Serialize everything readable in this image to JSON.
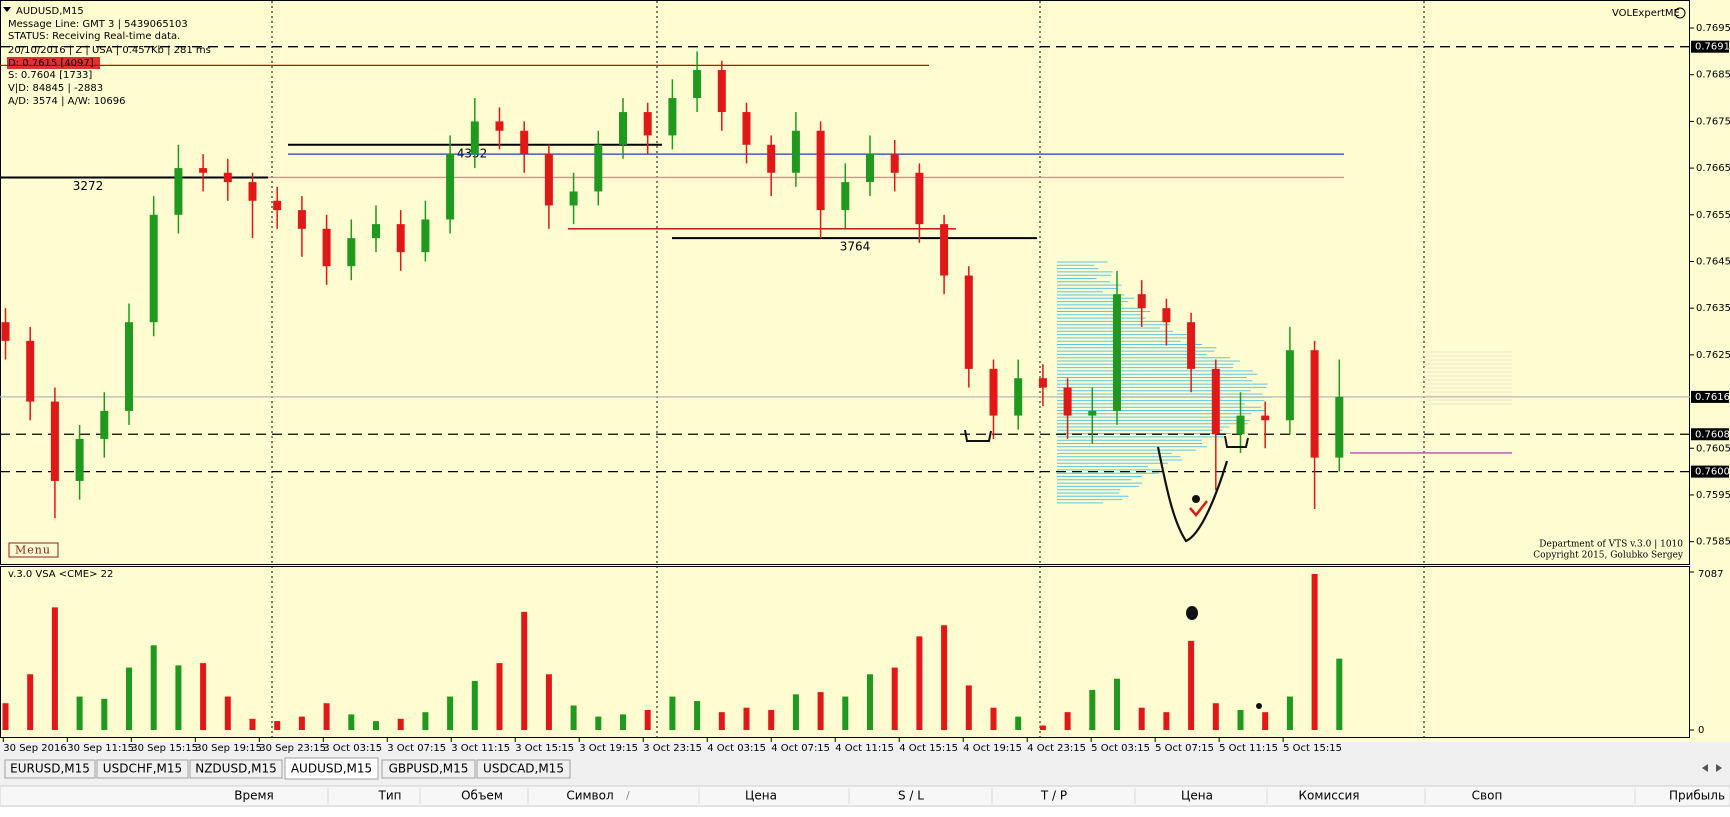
{
  "chart_data": {
    "type": "candlestick",
    "symbol": "AUDUSD,M15",
    "info": [
      "Message Line: GMT 3 | 5439065103",
      "STATUS:  Receiving Real-time data.",
      "20/10/2016 | Z | USA | 0.457Kb | 281 ms",
      "D: 0.7615  [4097]",
      "S: 0.7604  [1733]",
      "V|D: 84845 | -2883",
      "A/D: 3574 | A/W: 10696"
    ],
    "indicator": "VOLExpertME",
    "menu": "Menu",
    "copyright": [
      "Department of VTS  v.3.0 | 1010",
      "Copyright 2015, Golubko Sergey"
    ],
    "ylim": [
      0.758,
      0.7701
    ],
    "yticks": [
      0.7695,
      0.7685,
      0.7675,
      0.7665,
      0.7655,
      0.7645,
      0.7635,
      0.7625,
      0.7605,
      0.7595,
      0.7585
    ],
    "price_marks": [
      0.7691,
      0.7616,
      0.7608,
      {
        "value": 0.76,
        "label": "0.7600"
      }
    ],
    "up_color": "#1f9a1f",
    "down_color": "#e01818",
    "candles": [
      [
        0.7632,
        0.7635,
        0.7624,
        0.7628
      ],
      [
        0.7628,
        0.7631,
        0.7611,
        0.7615
      ],
      [
        0.7615,
        0.7618,
        0.759,
        0.7598
      ],
      [
        0.7598,
        0.761,
        0.7594,
        0.7607
      ],
      [
        0.7607,
        0.7617,
        0.7603,
        0.7613
      ],
      [
        0.7613,
        0.7636,
        0.761,
        0.7632
      ],
      [
        0.7632,
        0.7659,
        0.7629,
        0.7655
      ],
      [
        0.7655,
        0.767,
        0.7651,
        0.7665
      ],
      [
        0.7665,
        0.7668,
        0.766,
        0.7664
      ],
      [
        0.7664,
        0.7667,
        0.7658,
        0.7662
      ],
      [
        0.7662,
        0.7664,
        0.765,
        0.7658
      ],
      [
        0.7658,
        0.7661,
        0.7652,
        0.7656
      ],
      [
        0.7656,
        0.7659,
        0.7646,
        0.7652
      ],
      [
        0.7652,
        0.7655,
        0.764,
        0.7644
      ],
      [
        0.7644,
        0.7654,
        0.7641,
        0.765
      ],
      [
        0.765,
        0.7657,
        0.7647,
        0.7653
      ],
      [
        0.7653,
        0.7656,
        0.7643,
        0.7647
      ],
      [
        0.7647,
        0.7658,
        0.7645,
        0.7654
      ],
      [
        0.7654,
        0.7672,
        0.7651,
        0.7668
      ],
      [
        0.7668,
        0.768,
        0.7665,
        0.7675
      ],
      [
        0.7675,
        0.7678,
        0.7669,
        0.7673
      ],
      [
        0.7673,
        0.7675,
        0.7664,
        0.7668
      ],
      [
        0.7668,
        0.767,
        0.7652,
        0.7657
      ],
      [
        0.7657,
        0.7664,
        0.7653,
        0.766
      ],
      [
        0.766,
        0.7673,
        0.7657,
        0.767
      ],
      [
        0.767,
        0.768,
        0.7667,
        0.7677
      ],
      [
        0.7677,
        0.7679,
        0.7668,
        0.7672
      ],
      [
        0.7672,
        0.7684,
        0.7669,
        0.768
      ],
      [
        0.768,
        0.769,
        0.7677,
        0.7686
      ],
      [
        0.7686,
        0.7688,
        0.7673,
        0.7677
      ],
      [
        0.7677,
        0.7679,
        0.7666,
        0.767
      ],
      [
        0.767,
        0.7672,
        0.7659,
        0.7664
      ],
      [
        0.7664,
        0.7677,
        0.7661,
        0.7673
      ],
      [
        0.7673,
        0.7675,
        0.765,
        0.7656
      ],
      [
        0.7656,
        0.7666,
        0.7652,
        0.7662
      ],
      [
        0.7662,
        0.7672,
        0.7659,
        0.7668
      ],
      [
        0.7668,
        0.7671,
        0.766,
        0.7664
      ],
      [
        0.7664,
        0.7666,
        0.7649,
        0.7653
      ],
      [
        0.7653,
        0.7655,
        0.7638,
        0.7642
      ],
      [
        0.7642,
        0.7644,
        0.7618,
        0.7622
      ],
      [
        0.7622,
        0.7624,
        0.7607,
        0.7612
      ],
      [
        0.7612,
        0.7624,
        0.7609,
        0.762
      ],
      [
        0.762,
        0.7623,
        0.7614,
        0.7618
      ],
      [
        0.7618,
        0.762,
        0.7607,
        0.7612
      ],
      [
        0.7612,
        0.7618,
        0.7606,
        0.7613
      ],
      [
        0.7613,
        0.7643,
        0.761,
        0.7638
      ],
      [
        0.7638,
        0.7641,
        0.7631,
        0.7635
      ],
      [
        0.7635,
        0.7637,
        0.7627,
        0.7632
      ],
      [
        0.7632,
        0.7634,
        0.7617,
        0.7622
      ],
      [
        0.7622,
        0.7624,
        0.7596,
        0.7608
      ],
      [
        0.7608,
        0.7617,
        0.7604,
        0.7612
      ],
      [
        0.7612,
        0.7615,
        0.7605,
        0.7611
      ],
      [
        0.7611,
        0.7631,
        0.7608,
        0.7626
      ],
      [
        0.7626,
        0.7628,
        0.7592,
        0.7603
      ],
      [
        0.7603,
        0.7624,
        0.76,
        0.7616
      ]
    ],
    "levels": [
      {
        "price": 0.7691,
        "line": "dashed",
        "color": "#000000"
      },
      {
        "price": 0.7687,
        "line": "solid",
        "color": "#d00000"
      },
      {
        "price": 0.767,
        "line": "solid",
        "color": "#000000",
        "label": "4352"
      },
      {
        "price": 0.7668,
        "line": "solid",
        "color": "#1f3fbf"
      },
      {
        "price": 0.7663,
        "line": "solid",
        "color": "#e08a8a"
      },
      {
        "price": 0.7663,
        "line": "solid",
        "color": "#000000",
        "label": "3272"
      },
      {
        "price": 0.7652,
        "line": "solid",
        "color": "#c00000"
      },
      {
        "price": 0.765,
        "line": "solid",
        "color": "#000000",
        "label": "3764"
      },
      {
        "price": 0.7616,
        "line": "solid",
        "color": "#b8b8b8"
      },
      {
        "price": 0.7608,
        "line": "dashed",
        "color": "#000000"
      },
      {
        "price": 0.76,
        "line": "dashed",
        "color": "#000000"
      },
      {
        "price": 0.7604,
        "line": "solid",
        "color": "#b050c0"
      }
    ],
    "time_labels": [
      "30 Sep 2016",
      "30 Sep 11:15",
      "30 Sep 15:15",
      "30 Sep 19:15",
      "30 Sep 23:15",
      "3 Oct 03:15",
      "3 Oct 07:15",
      "3 Oct 11:15",
      "3 Oct 15:15",
      "3 Oct 19:15",
      "3 Oct 23:15",
      "4 Oct 03:15",
      "4 Oct 07:15",
      "4 Oct 11:15",
      "4 Oct 15:15",
      "4 Oct 19:15",
      "4 Oct 23:15",
      "5 Oct 03:15",
      "5 Oct 07:15",
      "5 Oct 11:15",
      "5 Oct 15:15"
    ],
    "volume": {
      "title": "v.3.0 VSA <CME> 22",
      "ylim": [
        0,
        7087
      ],
      "yticks": [
        7087,
        0
      ],
      "values": [
        1200,
        2500,
        5500,
        1500,
        1400,
        2800,
        3800,
        2900,
        3000,
        1500,
        500,
        400,
        600,
        1200,
        700,
        400,
        500,
        800,
        1500,
        2200,
        3000,
        5300,
        2500,
        1100,
        600,
        700,
        900,
        1500,
        1300,
        800,
        1000,
        900,
        1600,
        1700,
        1500,
        2500,
        2800,
        4200,
        4700,
        2000,
        1000,
        600,
        200,
        800,
        1800,
        2300,
        1000,
        800,
        4000,
        1200,
        900,
        800,
        1500,
        7000,
        3200
      ]
    }
  },
  "tabs": [
    "EURUSD,M15",
    "USDCHF,M15",
    "NZDUSD,M15",
    "AUDUSD,M15",
    "GBPUSD,M15",
    "USDCAD,M15"
  ],
  "active_tab": 3,
  "table": {
    "headers": [
      "Время",
      "Тип",
      "Объем",
      "Символ",
      "Цена",
      "S / L",
      "T / P",
      "Цена",
      "Комиссия",
      "Своп",
      "Прибыль"
    ]
  }
}
